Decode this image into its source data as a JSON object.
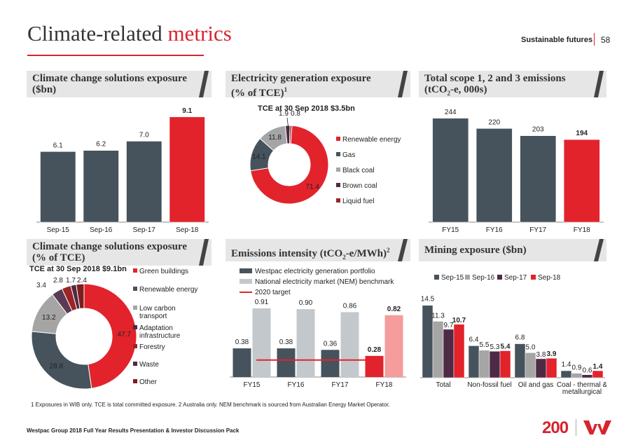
{
  "page": {
    "title_main": "Climate-related ",
    "title_accent": "metrics",
    "section": "Sustainable futures",
    "page_number": "58",
    "footnote": "1 Exposures in WIB only.  TCE is total committed exposure.  2 Australia only.  NEM benchmark is sourced from Australian Energy Market Operator.",
    "footer": "Westpac Group 2018 Full Year Results Presentation & Investor Discussion Pack",
    "logo_text": "200",
    "colors": {
      "dark": "#46535c",
      "red": "#e2232c",
      "grey": "#a5a5a5",
      "lightgrey": "#c3c8cc",
      "plum": "#4f2a44",
      "salmon": "#f59c9c",
      "darkred": "#9c2424",
      "lightred": "#d0d0d0"
    }
  },
  "panels": {
    "p1": {
      "title_line1": "Climate change solutions exposure",
      "title_line2": "($bn)"
    },
    "p2": {
      "title_line1": "Electricity generation exposure",
      "title_line2": "(% of  TCE)",
      "title_sup": "1",
      "subtitle": "TCE at 30 Sep 2018 $3.5bn"
    },
    "p3": {
      "title_line1": "Total scope 1, 2 and 3 emissions",
      "title_line2a": "(tCO",
      "title_sub": "2",
      "title_line2b": "-e, 000s)"
    },
    "p4": {
      "title_line1": "Climate change solutions exposure",
      "title_line2": "(% of TCE)",
      "subtitle": "TCE at 30 Sep 2018 $9.1bn"
    },
    "p5": {
      "title_a": "Emissions intensity (tCO",
      "title_sub": "2",
      "title_b": "-e/MWh)",
      "title_sup": "2"
    },
    "p6": {
      "title": "Mining exposure ($bn)"
    }
  },
  "chart_data": [
    {
      "id": "solutions-exposure",
      "type": "bar",
      "categories": [
        "Sep-15",
        "Sep-16",
        "Sep-17",
        "Sep-18"
      ],
      "values": [
        6.1,
        6.2,
        7.0,
        9.1
      ],
      "labels": [
        "6.1",
        "6.2",
        "7.0",
        "9.1"
      ],
      "ylim": [
        0,
        10
      ]
    },
    {
      "id": "electricity-generation",
      "type": "pie",
      "donut": true,
      "subtitle": "TCE at 30 Sep 2018 $3.5bn",
      "categories": [
        "Renewable energy",
        "Gas",
        "Black coal",
        "Brown coal",
        "Liquid fuel"
      ],
      "values": [
        71.4,
        14.1,
        11.8,
        1.9,
        0.8
      ],
      "labels": [
        "71.4",
        "14.1",
        "11.8",
        "1.9",
        "0.8"
      ]
    },
    {
      "id": "scope-emissions",
      "type": "bar",
      "categories": [
        "FY15",
        "FY16",
        "FY17",
        "FY18"
      ],
      "values": [
        244,
        220,
        203,
        194
      ],
      "labels": [
        "244",
        "220",
        "203",
        "194"
      ],
      "ylim": [
        0,
        270
      ]
    },
    {
      "id": "solutions-share",
      "type": "pie",
      "donut": true,
      "subtitle": "TCE at 30 Sep 2018 $9.1bn",
      "categories": [
        "Green buildings",
        "Renewable energy",
        "Low carbon transport",
        "Adaptation infrastructure",
        "Forestry",
        "Waste",
        "Other"
      ],
      "legend_labels": [
        "Green buildings",
        "Renewable energy",
        "Low carbon\ntransport",
        "Adaptation\ninfrastructure",
        "Forestry",
        "Waste",
        "Other"
      ],
      "values": [
        47.7,
        28.8,
        13.2,
        3.4,
        2.8,
        1.7,
        2.4
      ],
      "labels": [
        "47.7",
        "28.8",
        "13.2",
        "3.4",
        "2.8",
        "1.7",
        "2.4"
      ]
    },
    {
      "id": "emissions-intensity",
      "type": "bar",
      "categories": [
        "FY15",
        "FY16",
        "FY17",
        "FY18"
      ],
      "series": [
        {
          "name": "Westpac electricity generation portfolio",
          "values": [
            0.38,
            0.38,
            0.36,
            0.28
          ],
          "labels": [
            "0.38",
            "0.38",
            "0.36",
            "0.28"
          ]
        },
        {
          "name": "National electricity market (NEM) benchmark",
          "values": [
            0.91,
            0.9,
            0.86,
            0.82
          ],
          "labels": [
            "0.91",
            "0.90",
            "0.86",
            "0.82"
          ]
        }
      ],
      "target": {
        "name": "2020 target",
        "value": 0.3
      },
      "ylim": [
        0,
        1.05
      ]
    },
    {
      "id": "mining-exposure",
      "type": "bar",
      "categories": [
        "Total",
        "Non-fossil fuel",
        "Oil and gas",
        "Coal - thermal &\nmetallurgical"
      ],
      "series": [
        {
          "name": "Sep-15",
          "values": [
            14.5,
            6.4,
            6.8,
            1.4
          ],
          "labels": [
            "14.5",
            "6.4",
            "6.8",
            "1.4"
          ]
        },
        {
          "name": "Sep-16",
          "values": [
            11.3,
            5.5,
            5.0,
            0.9
          ],
          "labels": [
            "11.3",
            "5.5",
            "5.0",
            "0.9"
          ]
        },
        {
          "name": "Sep-17",
          "values": [
            9.7,
            5.3,
            3.8,
            0.6
          ],
          "labels": [
            "9.7",
            "5.3",
            "3.8",
            "0.6"
          ]
        },
        {
          "name": "Sep-18",
          "values": [
            10.7,
            5.4,
            3.9,
            1.4
          ],
          "labels": [
            "10.7",
            "5.4",
            "3.9",
            "1.4"
          ]
        }
      ],
      "ylim": [
        0,
        16
      ]
    }
  ]
}
